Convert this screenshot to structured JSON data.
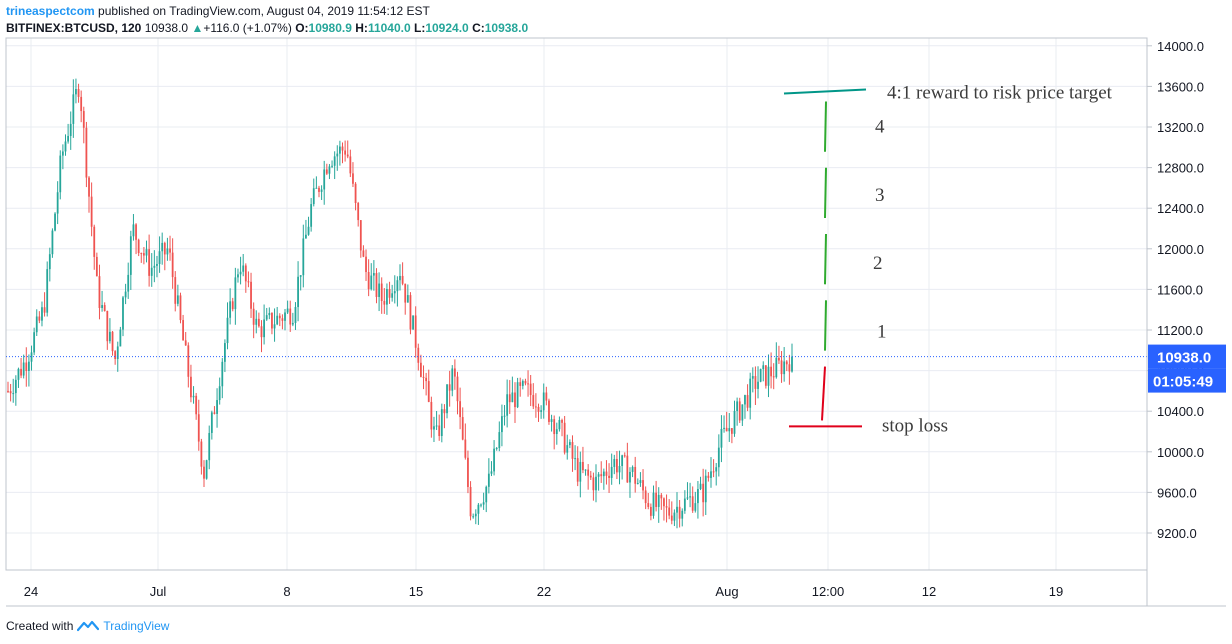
{
  "header": {
    "author": "trineaspectcom",
    "published_text": "published on TradingView.com, August 04, 2019 11:54:12 EST",
    "symbol": "BITFINEX:BTCUSD, 120",
    "last": "10938.0",
    "change": "+116.0 (+1.07%)",
    "o_label": "O:",
    "o_value": "10980.9",
    "h_label": "H:",
    "h_value": "11040.0",
    "l_label": "L:",
    "l_value": "10924.0",
    "c_label": "C:",
    "c_value": "10938.0"
  },
  "footer": {
    "created_with": "Created with",
    "brand": "TradingView"
  },
  "colors": {
    "up": "#26a69a",
    "down": "#ef5350",
    "target": "#009688",
    "stop": "#e0001b",
    "price_box": "#2962ff",
    "grid": "#e9ecf2",
    "axis_text": "#131722"
  },
  "chart_data": {
    "type": "candlestick",
    "x_ticks": [
      "24",
      "Jul",
      "8",
      "15",
      "22",
      "Aug",
      "12:00",
      "12",
      "19"
    ],
    "y_ticks": [
      9200,
      9600,
      10000,
      10400,
      10800,
      11200,
      11600,
      12000,
      12400,
      12800,
      13200,
      13600,
      14000
    ],
    "ylim": [
      8800,
      14000
    ],
    "last_price": "10938.0",
    "countdown": "01:05:49",
    "path_points": [
      [
        "Jun 22",
        10600
      ],
      [
        "Jun 24",
        10900
      ],
      [
        "Jun 25",
        11400
      ],
      [
        "Jun 26",
        12900
      ],
      [
        "Jun 26 late",
        13650
      ],
      [
        "Jun 27",
        11600
      ],
      [
        "Jun 27 late",
        10900
      ],
      [
        "Jun 28",
        12200
      ],
      [
        "Jun 29",
        11800
      ],
      [
        "Jun 30",
        12000
      ],
      [
        "Jul 01",
        10900
      ],
      [
        "Jul 02",
        9800
      ],
      [
        "Jul 03",
        10900
      ],
      [
        "Jul 04",
        11900
      ],
      [
        "Jul 05",
        11200
      ],
      [
        "Jul 06",
        11300
      ],
      [
        "Jul 07",
        11400
      ],
      [
        "Jul 08",
        12400
      ],
      [
        "Jul 09",
        12900
      ],
      [
        "Jul 10",
        13000
      ],
      [
        "Jul 11",
        11800
      ],
      [
        "Jul 12",
        11500
      ],
      [
        "Jul 13",
        11800
      ],
      [
        "Jul 14",
        11000
      ],
      [
        "Jul 15",
        10100
      ],
      [
        "Jul 16",
        10800
      ],
      [
        "Jul 17",
        9400
      ],
      [
        "Jul 18",
        9700
      ],
      [
        "Jul 19",
        10500
      ],
      [
        "Jul 20",
        10600
      ],
      [
        "Jul 21",
        10500
      ],
      [
        "Jul 22",
        10200
      ],
      [
        "Jul 23",
        9800
      ],
      [
        "Jul 24",
        9700
      ],
      [
        "Jul 25",
        9900
      ],
      [
        "Jul 26",
        9800
      ],
      [
        "Jul 27",
        9500
      ],
      [
        "Jul 28",
        9400
      ],
      [
        "Jul 29",
        9500
      ],
      [
        "Jul 30",
        9600
      ],
      [
        "Jul 31",
        10100
      ],
      [
        "Aug 01",
        10400
      ],
      [
        "Aug 02",
        10700
      ],
      [
        "Aug 03",
        10800
      ],
      [
        "Aug 04",
        10938
      ]
    ],
    "annotations": {
      "target_label": "4:1 reward to risk price target",
      "stop_label": "stop loss",
      "step_labels": [
        "4",
        "3",
        "2",
        "1"
      ],
      "target_price": 13550,
      "entry_price": 10938,
      "stop_price": 10250
    }
  }
}
